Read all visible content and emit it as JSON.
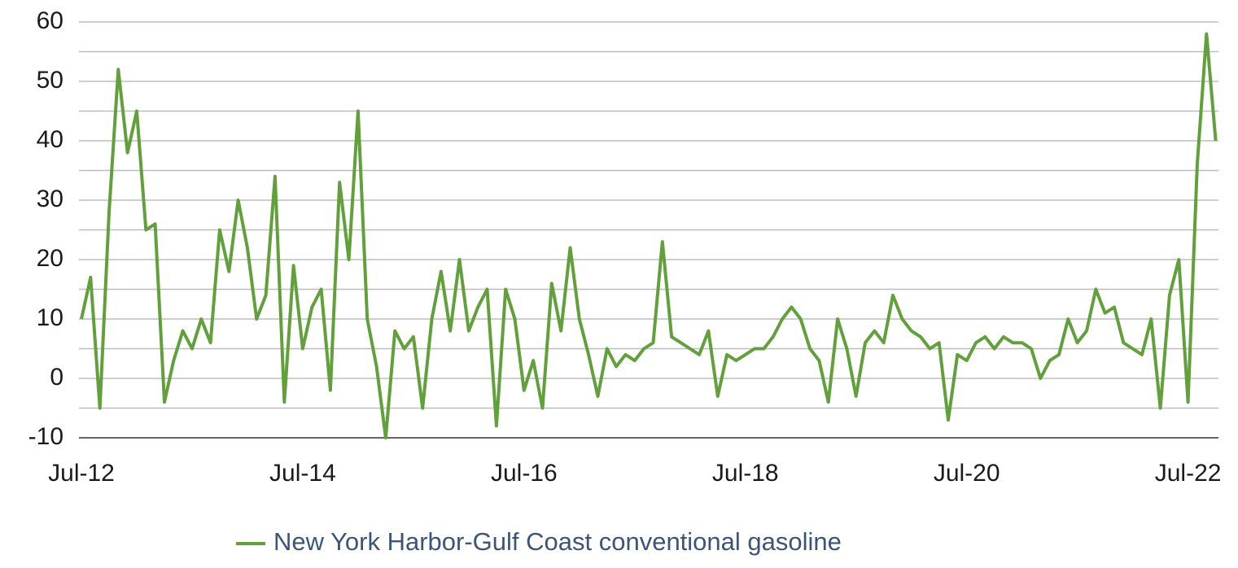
{
  "chart_data": {
    "type": "line",
    "categories": [
      "Jul-12",
      "Aug-12",
      "Sep-12",
      "Oct-12",
      "Nov-12",
      "Dec-12",
      "Jan-13",
      "Feb-13",
      "Mar-13",
      "Apr-13",
      "May-13",
      "Jun-13",
      "Jul-13",
      "Aug-13",
      "Sep-13",
      "Oct-13",
      "Nov-13",
      "Dec-13",
      "Jan-14",
      "Feb-14",
      "Mar-14",
      "Apr-14",
      "May-14",
      "Jun-14",
      "Jul-14",
      "Aug-14",
      "Sep-14",
      "Oct-14",
      "Nov-14",
      "Dec-14",
      "Jan-15",
      "Feb-15",
      "Mar-15",
      "Apr-15",
      "May-15",
      "Jun-15",
      "Jul-15",
      "Aug-15",
      "Sep-15",
      "Oct-15",
      "Nov-15",
      "Dec-15",
      "Jan-16",
      "Feb-16",
      "Mar-16",
      "Apr-16",
      "May-16",
      "Jun-16",
      "Jul-16",
      "Aug-16",
      "Sep-16",
      "Oct-16",
      "Nov-16",
      "Dec-16",
      "Jan-17",
      "Feb-17",
      "Mar-17",
      "Apr-17",
      "May-17",
      "Jun-17",
      "Jul-17",
      "Aug-17",
      "Sep-17",
      "Oct-17",
      "Nov-17",
      "Dec-17",
      "Jan-18",
      "Feb-18",
      "Mar-18",
      "Apr-18",
      "May-18",
      "Jun-18",
      "Jul-18",
      "Aug-18",
      "Sep-18",
      "Oct-18",
      "Nov-18",
      "Dec-18",
      "Jan-19",
      "Feb-19",
      "Mar-19",
      "Apr-19",
      "May-19",
      "Jun-19",
      "Jul-19",
      "Aug-19",
      "Sep-19",
      "Oct-19",
      "Nov-19",
      "Dec-19",
      "Jan-20",
      "Feb-20",
      "Mar-20",
      "Apr-20",
      "May-20",
      "Jun-20",
      "Jul-20",
      "Aug-20",
      "Sep-20",
      "Oct-20",
      "Nov-20",
      "Dec-20",
      "Jan-21",
      "Feb-21",
      "Mar-21",
      "Apr-21",
      "May-21",
      "Jun-21",
      "Jul-21",
      "Aug-21",
      "Sep-21",
      "Oct-21",
      "Nov-21",
      "Dec-21",
      "Jan-22",
      "Feb-22",
      "Mar-22",
      "Apr-22",
      "May-22",
      "Jun-22",
      "Jul-22",
      "Aug-22",
      "Sep-22",
      "Oct-22"
    ],
    "series": [
      {
        "name": "New York Harbor-Gulf Coast conventional gasoline",
        "color": "#62a03b",
        "values": [
          10,
          17,
          -5,
          28,
          52,
          38,
          45,
          25,
          26,
          -4,
          3,
          8,
          5,
          10,
          6,
          25,
          18,
          30,
          22,
          10,
          14,
          34,
          -4,
          19,
          5,
          12,
          15,
          -2,
          33,
          20,
          45,
          10,
          2,
          -10,
          8,
          5,
          7,
          -5,
          10,
          18,
          8,
          20,
          8,
          12,
          15,
          -8,
          15,
          10,
          -2,
          3,
          -5,
          16,
          8,
          22,
          10,
          4,
          -3,
          5,
          2,
          4,
          3,
          5,
          6,
          23,
          7,
          6,
          5,
          4,
          8,
          -3,
          4,
          3,
          4,
          5,
          5,
          7,
          10,
          12,
          10,
          5,
          3,
          -4,
          10,
          5,
          -3,
          6,
          8,
          6,
          14,
          10,
          8,
          7,
          5,
          6,
          -7,
          4,
          3,
          6,
          7,
          5,
          7,
          6,
          6,
          5,
          0,
          3,
          4,
          10,
          6,
          8,
          15,
          11,
          12,
          6,
          5,
          4,
          10,
          -5,
          14,
          20,
          -4,
          36,
          58,
          40
        ]
      }
    ],
    "xticks": [
      "Jul-12",
      "Jul-14",
      "Jul-16",
      "Jul-18",
      "Jul-20",
      "Jul-22"
    ],
    "ylim": [
      -10,
      60
    ],
    "yticks": [
      -10,
      0,
      10,
      20,
      30,
      40,
      50,
      60
    ],
    "yminor": [
      -5,
      5,
      15,
      25,
      35,
      45,
      55
    ],
    "grid": true
  }
}
